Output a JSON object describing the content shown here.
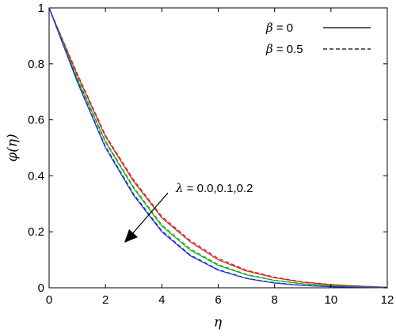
{
  "chart_data": {
    "type": "line",
    "xlabel": "η",
    "ylabel": "φ(η)",
    "xlim": [
      0,
      12
    ],
    "ylim": [
      0,
      1
    ],
    "xticks": [
      "0",
      "2",
      "4",
      "6",
      "8",
      "10",
      "12"
    ],
    "yticks": [
      "0",
      "0.2",
      "0.4",
      "0.6",
      "0.8",
      "1"
    ],
    "grid": false,
    "legend": {
      "placement": "top-right",
      "entries": [
        {
          "symbol": "β",
          "text": " = 0",
          "style": "solid"
        },
        {
          "symbol": "β",
          "text": " = 0.5",
          "style": "dashed"
        }
      ]
    },
    "annotation": {
      "symbol": "λ",
      "text": " = 0.0,0.1,0.2"
    },
    "x": [
      0,
      1,
      2,
      3,
      4,
      5,
      6,
      7,
      8,
      9,
      10,
      11,
      12
    ],
    "series": [
      {
        "style": "solid",
        "color": "#d62020",
        "values": [
          1.0,
          0.76,
          0.54,
          0.38,
          0.25,
          0.165,
          0.1,
          0.06,
          0.036,
          0.02,
          0.011,
          0.006,
          0.002
        ]
      },
      {
        "style": "dashed",
        "color": "#d62020",
        "values": [
          1.0,
          0.765,
          0.545,
          0.385,
          0.255,
          0.17,
          0.105,
          0.063,
          0.038,
          0.021,
          0.012,
          0.006,
          0.002
        ]
      },
      {
        "style": "solid",
        "color": "#19b319",
        "values": [
          1.0,
          0.745,
          0.52,
          0.355,
          0.22,
          0.135,
          0.08,
          0.046,
          0.026,
          0.014,
          0.007,
          0.003,
          0.001
        ]
      },
      {
        "style": "dashed",
        "color": "#19b319",
        "values": [
          1.0,
          0.75,
          0.525,
          0.36,
          0.225,
          0.14,
          0.083,
          0.048,
          0.027,
          0.015,
          0.008,
          0.004,
          0.001
        ]
      },
      {
        "style": "solid",
        "color": "#1f2fd0",
        "values": [
          1.0,
          0.735,
          0.5,
          0.33,
          0.2,
          0.115,
          0.063,
          0.033,
          0.017,
          0.008,
          0.004,
          0.002,
          0.0
        ]
      },
      {
        "style": "dashed",
        "color": "#1f2fd0",
        "values": [
          1.0,
          0.738,
          0.505,
          0.335,
          0.204,
          0.118,
          0.065,
          0.034,
          0.018,
          0.009,
          0.004,
          0.002,
          0.0
        ]
      }
    ]
  }
}
